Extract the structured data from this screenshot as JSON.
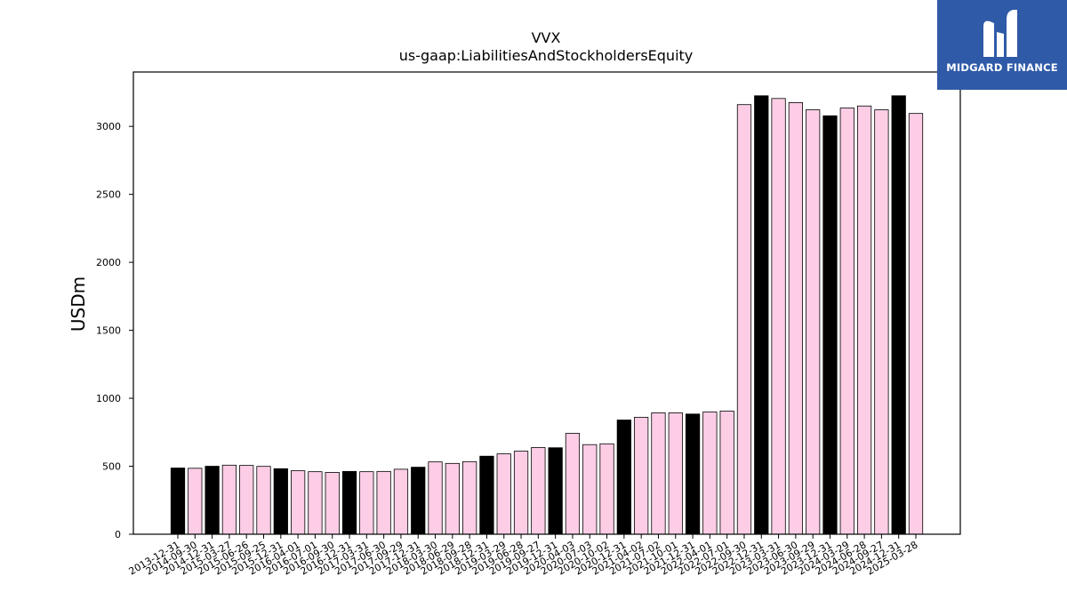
{
  "chart_data": {
    "type": "bar",
    "title": "VVX",
    "subtitle": "us-gaap:LiabilitiesAndStockholdersEquity",
    "xlabel": "",
    "ylabel": "USDm",
    "ylim": [
      0,
      3400
    ],
    "yticks": [
      0,
      500,
      1000,
      1500,
      2000,
      2500,
      3000
    ],
    "grid": false,
    "categories": [
      "2013-12-31",
      "2014-09-30",
      "2014-12-31",
      "2015-03-27",
      "2015-06-26",
      "2015-09-25",
      "2015-12-31",
      "2016-04-01",
      "2016-07-01",
      "2016-09-30",
      "2016-12-31",
      "2017-03-31",
      "2017-06-30",
      "2017-09-29",
      "2017-12-31",
      "2018-03-30",
      "2018-06-29",
      "2018-09-28",
      "2018-12-31",
      "2019-03-29",
      "2019-06-28",
      "2019-09-27",
      "2019-12-31",
      "2020-04-03",
      "2020-07-03",
      "2020-10-02",
      "2020-12-31",
      "2021-04-02",
      "2021-07-02",
      "2021-10-01",
      "2021-12-31",
      "2022-04-01",
      "2022-07-01",
      "2022-09-30",
      "2022-12-31",
      "2023-03-31",
      "2023-06-30",
      "2023-09-29",
      "2023-12-31",
      "2024-03-29",
      "2024-06-28",
      "2024-09-27",
      "2024-12-31",
      "2025-03-28"
    ],
    "values": [
      487,
      485,
      500,
      508,
      506,
      499,
      482,
      467,
      460,
      455,
      462,
      460,
      462,
      478,
      493,
      532,
      521,
      534,
      574,
      591,
      611,
      638,
      636,
      742,
      659,
      665,
      840,
      860,
      893,
      893,
      884,
      899,
      906,
      3160,
      3225,
      3205,
      3175,
      3122,
      3078,
      3135,
      3150,
      3122,
      3225,
      3095
    ],
    "fiscal_year_end": [
      true,
      false,
      true,
      false,
      false,
      false,
      true,
      false,
      false,
      false,
      true,
      false,
      false,
      false,
      true,
      false,
      false,
      false,
      true,
      false,
      false,
      false,
      true,
      false,
      false,
      false,
      true,
      false,
      false,
      false,
      true,
      false,
      false,
      false,
      true,
      false,
      false,
      false,
      true,
      false,
      false,
      false,
      true,
      false
    ],
    "colors": {
      "year_end": "#000000",
      "quarter": "#fccde5",
      "edge": "#000000"
    }
  },
  "logo": {
    "text": "MIDGARD FINANCE",
    "background": "#2f5aa8"
  }
}
